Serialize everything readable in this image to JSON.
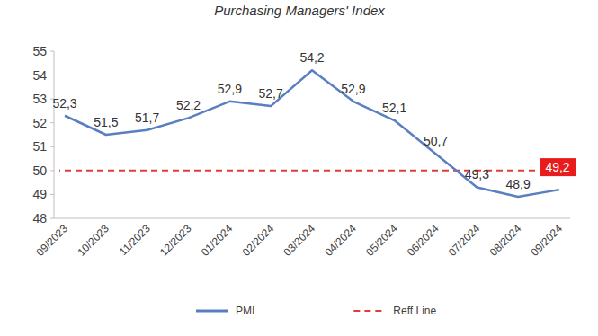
{
  "chart_data": {
    "type": "line",
    "title": "Purchasing Managers' Index",
    "categories": [
      "09/2023",
      "10/2023",
      "11/2023",
      "12/2023",
      "01/2024",
      "02/2024",
      "03/2024",
      "04/2024",
      "05/2024",
      "06/2024",
      "07/2024",
      "08/2024",
      "09/2024"
    ],
    "series": [
      {
        "name": "PMI",
        "color": "#5a7fc1",
        "values": [
          52.3,
          51.5,
          51.7,
          52.2,
          52.9,
          52.7,
          54.2,
          52.9,
          52.1,
          50.7,
          49.3,
          48.9,
          49.2
        ],
        "value_labels": [
          "52,3",
          "51,5",
          "51,7",
          "52,2",
          "52,9",
          "52,7",
          "54,2",
          "52,9",
          "52,1",
          "50,7",
          "49,3",
          "48,9",
          "49,2"
        ]
      }
    ],
    "reference_lines": [
      {
        "name": "Reff Line",
        "value": 50,
        "color": "#e03c3c",
        "line_style": "dashed"
      }
    ],
    "ylim": [
      48,
      55
    ],
    "yticks": [
      48,
      49,
      50,
      51,
      52,
      53,
      54,
      55
    ],
    "grid": false,
    "data_labels": true,
    "legend": "bottom"
  }
}
